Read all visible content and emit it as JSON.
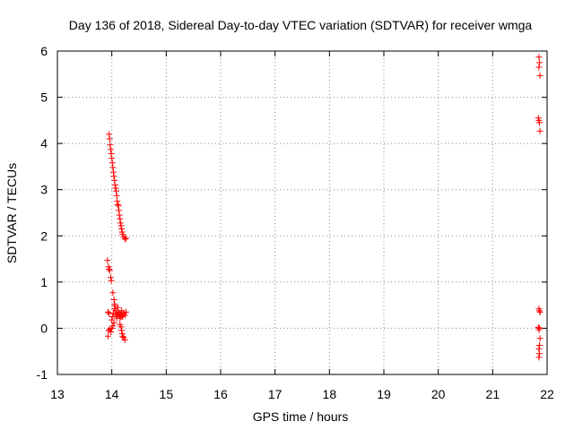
{
  "chart_data": {
    "type": "scatter",
    "title": "Day 136 of 2018, Sidereal Day-to-day VTEC variation (SDTVAR) for receiver wmga",
    "xlabel": "GPS time / hours",
    "ylabel": "SDTVAR / TECUs",
    "xlim": [
      13,
      22
    ],
    "ylim": [
      -1,
      6
    ],
    "xticks": [
      13,
      14,
      15,
      16,
      17,
      18,
      19,
      20,
      21,
      22
    ],
    "yticks": [
      -1,
      0,
      1,
      2,
      3,
      4,
      5,
      6
    ],
    "marker": "+",
    "color": "#ff0000",
    "grid": "dotted",
    "series": [
      {
        "name": "SDTVAR",
        "points": [
          [
            13.95,
            4.2
          ],
          [
            13.96,
            4.1
          ],
          [
            13.97,
            3.97
          ],
          [
            13.98,
            3.87
          ],
          [
            13.99,
            3.78
          ],
          [
            14.0,
            3.68
          ],
          [
            14.01,
            3.58
          ],
          [
            14.02,
            3.48
          ],
          [
            14.03,
            3.38
          ],
          [
            14.04,
            3.29
          ],
          [
            14.05,
            3.2
          ],
          [
            14.06,
            3.1
          ],
          [
            14.07,
            3.03
          ],
          [
            14.08,
            2.97
          ],
          [
            14.09,
            2.87
          ],
          [
            14.1,
            2.75
          ],
          [
            14.11,
            2.68
          ],
          [
            14.12,
            2.65
          ],
          [
            14.13,
            2.55
          ],
          [
            14.14,
            2.45
          ],
          [
            14.15,
            2.37
          ],
          [
            14.16,
            2.28
          ],
          [
            14.17,
            2.22
          ],
          [
            14.18,
            2.15
          ],
          [
            14.19,
            2.08
          ],
          [
            14.2,
            2.03
          ],
          [
            14.22,
            1.98
          ],
          [
            14.24,
            1.93
          ],
          [
            14.26,
            1.95
          ],
          [
            13.92,
            1.47
          ],
          [
            13.94,
            1.33
          ],
          [
            13.95,
            1.28
          ],
          [
            13.96,
            1.25
          ],
          [
            13.98,
            1.1
          ],
          [
            13.99,
            1.03
          ],
          [
            14.02,
            0.77
          ],
          [
            14.04,
            0.62
          ],
          [
            14.05,
            0.52
          ],
          [
            13.93,
            0.35
          ],
          [
            13.95,
            0.32
          ],
          [
            14.0,
            0.18
          ],
          [
            14.01,
            0.25
          ],
          [
            14.03,
            0.33
          ],
          [
            14.05,
            0.42
          ],
          [
            14.06,
            0.48
          ],
          [
            14.07,
            0.38
          ],
          [
            14.08,
            0.3
          ],
          [
            14.09,
            0.22
          ],
          [
            14.1,
            0.28
          ],
          [
            14.11,
            0.45
          ],
          [
            14.12,
            0.35
          ],
          [
            14.13,
            0.27
          ],
          [
            14.14,
            0.32
          ],
          [
            14.15,
            0.22
          ],
          [
            14.16,
            0.3
          ],
          [
            14.17,
            0.25
          ],
          [
            14.18,
            0.38
          ],
          [
            14.19,
            0.3
          ],
          [
            14.2,
            0.25
          ],
          [
            14.22,
            0.33
          ],
          [
            14.24,
            0.28
          ],
          [
            14.26,
            0.35
          ],
          [
            13.93,
            -0.17
          ],
          [
            13.94,
            -0.05
          ],
          [
            13.96,
            -0.02
          ],
          [
            13.98,
            -0.08
          ],
          [
            14.0,
            0.0
          ],
          [
            14.02,
            0.05
          ],
          [
            14.04,
            0.12
          ],
          [
            14.15,
            0.08
          ],
          [
            14.17,
            0.03
          ],
          [
            14.18,
            -0.05
          ],
          [
            14.19,
            -0.12
          ],
          [
            14.2,
            -0.18
          ],
          [
            14.22,
            -0.2
          ],
          [
            14.24,
            -0.25
          ],
          [
            21.85,
            5.87
          ],
          [
            21.86,
            5.75
          ],
          [
            21.85,
            5.65
          ],
          [
            21.87,
            5.47
          ],
          [
            21.84,
            4.55
          ],
          [
            21.85,
            4.5
          ],
          [
            21.86,
            4.45
          ],
          [
            21.87,
            4.27
          ],
          [
            21.85,
            0.42
          ],
          [
            21.86,
            0.38
          ],
          [
            21.87,
            0.35
          ],
          [
            21.84,
            0.02
          ],
          [
            21.86,
            0.0
          ],
          [
            21.85,
            -0.03
          ],
          [
            21.87,
            -0.22
          ],
          [
            21.86,
            -0.37
          ],
          [
            21.85,
            -0.45
          ],
          [
            21.86,
            -0.55
          ],
          [
            21.85,
            -0.63
          ]
        ]
      }
    ]
  }
}
